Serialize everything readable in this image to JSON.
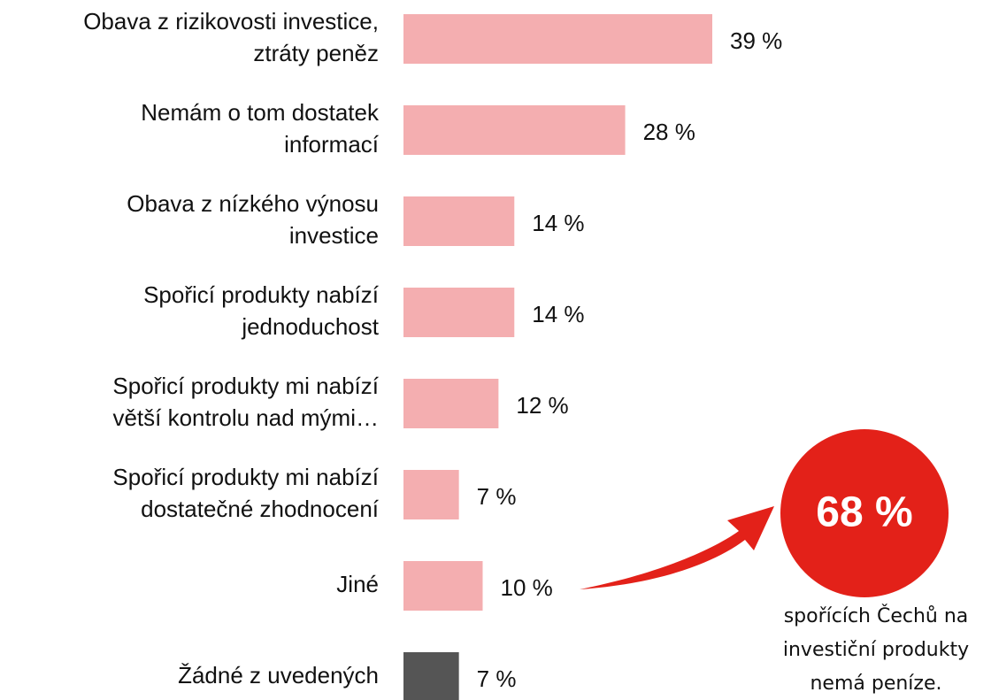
{
  "chart_data": {
    "type": "bar",
    "orientation": "horizontal",
    "categories": [
      [
        "Obava z rizikovosti investice,",
        "ztráty peněz"
      ],
      [
        "Nemám o tom dostatek",
        "informací"
      ],
      [
        "Obava z nízkého výnosu",
        "investice"
      ],
      [
        "Spořicí produkty nabízí",
        "jednoduchost"
      ],
      [
        "Spořicí produkty mi nabízí",
        "větší kontrolu nad mými…"
      ],
      [
        "Spořicí produkty mi nabízí",
        "dostatečné zhodnocení"
      ],
      [
        "Jiné"
      ],
      [
        "Žádné z uvedených"
      ]
    ],
    "values": [
      39,
      28,
      14,
      14,
      12,
      7,
      10,
      7
    ],
    "value_labels": [
      "39 %",
      "28 %",
      "14 %",
      "14 %",
      "12 %",
      "7 %",
      "10 %",
      "7 %"
    ],
    "colors": [
      "#f4aeb0",
      "#f4aeb0",
      "#f4aeb0",
      "#f4aeb0",
      "#f4aeb0",
      "#f4aeb0",
      "#f4aeb0",
      "#555555"
    ],
    "annotation": {
      "value": 68,
      "label": "68 %",
      "color": "#e32119",
      "text": [
        "spořících Čechů na",
        "investiční produkty",
        "nemá peníze."
      ]
    }
  }
}
